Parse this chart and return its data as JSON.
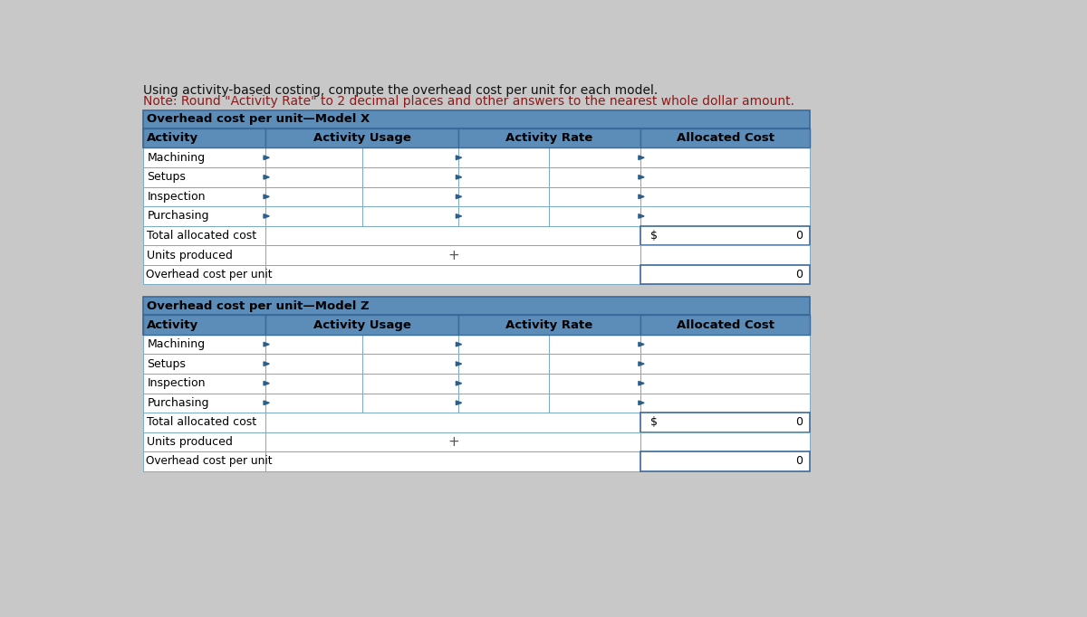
{
  "title_line1": "Using activity-based costing, compute the overhead cost per unit for each model.",
  "title_line2": "Note: Round \"Activity Rate\" to 2 decimal places and other answers to the nearest whole dollar amount.",
  "title_color": "#8B1A1A",
  "bg_color": "#C8C8C8",
  "table_bg": "#FFFFFF",
  "header_bg": "#5B8DB8",
  "section_header_bg": "#5B8DB8",
  "border_color": "#3A6A9A",
  "cell_border": "#7AAAC8",
  "model_x_title": "Overhead cost per unit—Model X",
  "model_z_title": "Overhead cost per unit—Model Z",
  "col_headers": [
    "Activity",
    "Activity Usage",
    "Activity Rate",
    "Allocated Cost"
  ],
  "activities": [
    "Machining",
    "Setups",
    "Inspection",
    "Purchasing"
  ],
  "font_size_title": 10.0,
  "font_size_header": 9.5,
  "font_size_cell": 9.0,
  "font_size_section": 9.5,
  "arrow_color": "#2B5F8A"
}
